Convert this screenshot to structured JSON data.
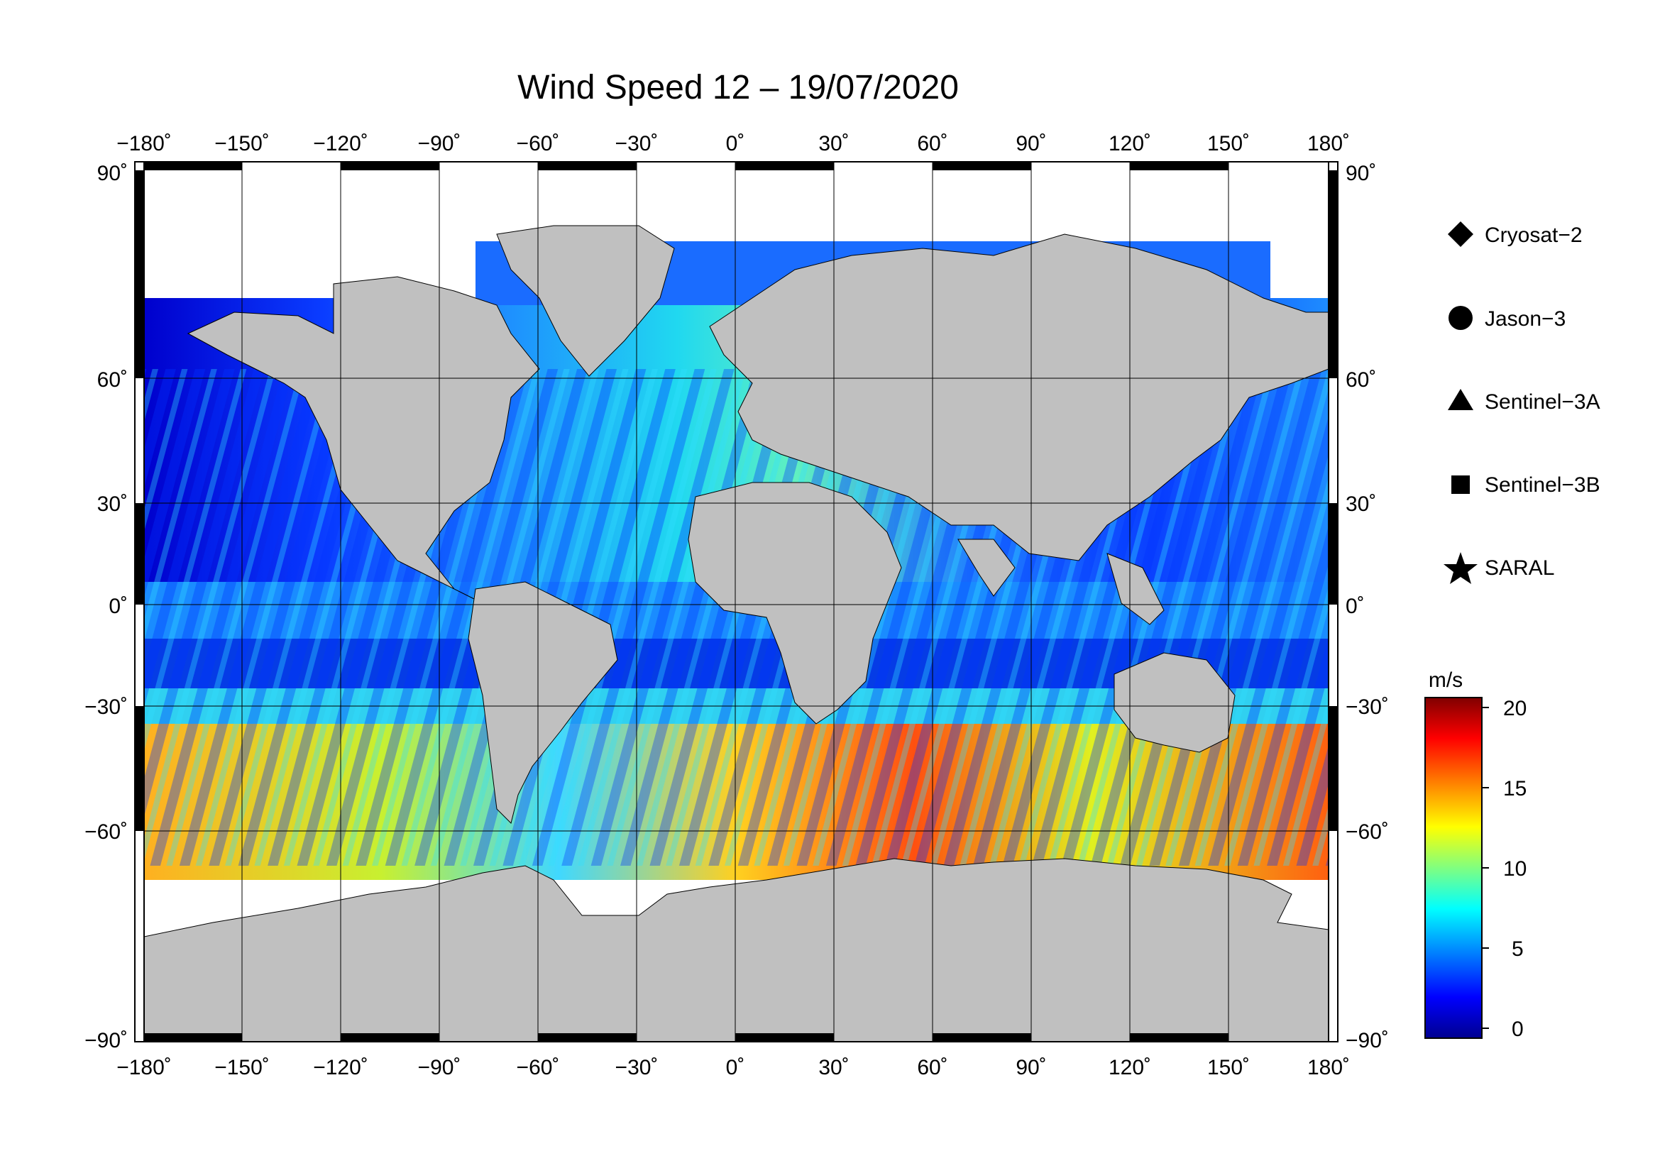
{
  "title": "Wind Speed 12 – 19/07/2020",
  "lon_ticks": [
    "−180˚",
    "−150˚",
    "−120˚",
    "−90˚",
    "−60˚",
    "−30˚",
    "0˚",
    "30˚",
    "60˚",
    "90˚",
    "120˚",
    "150˚",
    "180˚"
  ],
  "lat_ticks": [
    "90˚",
    "60˚",
    "30˚",
    "0˚",
    "−30˚",
    "−60˚",
    "−90˚"
  ],
  "legend": {
    "items": [
      {
        "label": "Cryosat−2",
        "icon": "diamond"
      },
      {
        "label": "Jason−3",
        "icon": "circle"
      },
      {
        "label": "Sentinel−3A",
        "icon": "triangle"
      },
      {
        "label": "Sentinel−3B",
        "icon": "square"
      },
      {
        "label": "SARAL",
        "icon": "star"
      }
    ]
  },
  "colorbar": {
    "unit": "m/s",
    "ticks": [
      "20",
      "15",
      "10",
      "5",
      "0"
    ],
    "colors": [
      "#00008f",
      "#0000ff",
      "#0080ff",
      "#00ffff",
      "#80ff80",
      "#ffff00",
      "#ff8000",
      "#ff0000",
      "#800000"
    ]
  },
  "colors": {
    "land": "#c0c0c0",
    "ice": "#ffffff",
    "frame": "#000000"
  }
}
